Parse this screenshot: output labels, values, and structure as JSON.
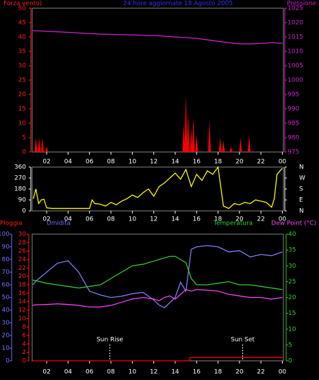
{
  "chart_data": [
    {
      "type": "line",
      "title": "24 hore aggiornate  18 Agosto 2005",
      "title_color": "#3333ff",
      "xlim": [
        0.65,
        24.1
      ],
      "xticks": [
        {
          "value": 2,
          "label": "02"
        },
        {
          "value": 4,
          "label": "04"
        },
        {
          "value": 6,
          "label": "06"
        },
        {
          "value": 8,
          "label": "08"
        },
        10,
        12,
        14,
        16,
        18,
        20,
        22,
        {
          "value": 24,
          "label": "00"
        }
      ],
      "axes": [
        {
          "label": "Forza vento)",
          "color": "#ff2020",
          "lim": [
            0,
            50
          ],
          "ticks": [
            0,
            5,
            10,
            15,
            20,
            25,
            30,
            35,
            40,
            45,
            50
          ]
        },
        {
          "label": "Pressione",
          "color": "#d020d0",
          "lim": [
            975,
            1025
          ],
          "ticks": [
            975,
            980,
            985,
            990,
            995,
            1000,
            1005,
            1010,
            1015,
            1020,
            1025
          ]
        }
      ],
      "series": [
        {
          "axis": 0,
          "style": "spikes",
          "color": "#ff0000",
          "x": [
            1.0,
            1.3,
            1.6,
            2.0,
            14.8,
            15.0,
            15.2,
            15.5,
            15.7,
            16.0,
            17.2,
            18.2,
            18.5,
            19.2,
            20.1,
            20.9
          ],
          "values": [
            5,
            5,
            5,
            2,
            10,
            20,
            14,
            8,
            12,
            6,
            11,
            5,
            4,
            2,
            5,
            6
          ]
        },
        {
          "axis": 1,
          "style": "line",
          "color": "#d020d0",
          "x": [
            0.7,
            2,
            3,
            4,
            5,
            6,
            7,
            8,
            9,
            10,
            11,
            12,
            13,
            14,
            15,
            16,
            17,
            18,
            19,
            20,
            21,
            22,
            23,
            24
          ],
          "values": [
            1017.2,
            1017,
            1016.8,
            1016.6,
            1016.4,
            1016.2,
            1016,
            1015.9,
            1015.8,
            1015.7,
            1015.6,
            1015.5,
            1015.3,
            1015,
            1014.8,
            1014.5,
            1014,
            1013.5,
            1013,
            1012.6,
            1012.6,
            1012.8,
            1013,
            1012.8
          ]
        }
      ]
    },
    {
      "type": "line",
      "xlim": [
        0.65,
        24.1
      ],
      "xticks": [
        {
          "value": 2,
          "label": "02"
        },
        {
          "value": 4,
          "label": "04"
        },
        {
          "value": 6,
          "label": "06"
        },
        {
          "value": 8,
          "label": "08"
        },
        10,
        12,
        14,
        16,
        18,
        20,
        22,
        {
          "value": 24,
          "label": "00"
        }
      ],
      "axes": [
        {
          "color": "#ffffff",
          "lim": [
            0,
            360
          ],
          "ticks": [
            0,
            90,
            180,
            270,
            360
          ]
        },
        {
          "color": "#ffffff",
          "lim": [
            0,
            360
          ],
          "ticks": [
            {
              "value": 0,
              "label": "N"
            },
            {
              "value": 90,
              "label": "E"
            },
            {
              "value": 180,
              "label": "S"
            },
            {
              "value": 270,
              "label": "W"
            },
            {
              "value": 360,
              "label": "N"
            }
          ]
        }
      ],
      "series": [
        {
          "axis": 0,
          "style": "line",
          "color": "#ffff00",
          "x": [
            0.75,
            1,
            1.25,
            1.5,
            1.75,
            2,
            2.5,
            3,
            3.5,
            4,
            4.5,
            5,
            5.5,
            6,
            6.25,
            6.5,
            7,
            7.5,
            8,
            8.5,
            9,
            9.5,
            10,
            10.5,
            11,
            11.5,
            12,
            12.5,
            13,
            13.5,
            14,
            14.5,
            15,
            15.5,
            16,
            16.5,
            17,
            17.5,
            18,
            18.5,
            19,
            19.5,
            20,
            20.5,
            21,
            21.5,
            22,
            22.5,
            23,
            23.25,
            23.5,
            24
          ],
          "values": [
            100,
            180,
            60,
            90,
            95,
            25,
            20,
            20,
            20,
            20,
            20,
            20,
            20,
            20,
            90,
            60,
            55,
            40,
            70,
            50,
            80,
            100,
            130,
            110,
            150,
            180,
            120,
            200,
            230,
            270,
            310,
            260,
            340,
            200,
            300,
            250,
            330,
            300,
            360,
            40,
            20,
            60,
            50,
            70,
            60,
            90,
            80,
            70,
            30,
            100,
            300,
            350
          ]
        }
      ]
    },
    {
      "type": "line",
      "xlim": [
        0.65,
        24.1
      ],
      "xticks": [
        {
          "value": 2,
          "label": "02"
        },
        {
          "value": 4,
          "label": "04"
        },
        {
          "value": 6,
          "label": "06"
        },
        {
          "value": 8,
          "label": "08"
        },
        10,
        12,
        14,
        16,
        18,
        20,
        22,
        {
          "value": 24,
          "label": "00"
        }
      ],
      "axes": [
        {
          "label": "Pioggia",
          "color": "#ff2020",
          "lim": [
            0,
            30
          ],
          "ticks": [
            0,
            2,
            4,
            6,
            8,
            10,
            12,
            14,
            16,
            18,
            20,
            22,
            24,
            26,
            28,
            30
          ]
        },
        {
          "label": "Umidita",
          "color": "#7070ff",
          "lim": [
            0,
            100
          ],
          "ticks": [
            0,
            10,
            20,
            30,
            40,
            50,
            60,
            70,
            80,
            90,
            100
          ]
        },
        {
          "label": "Temperatura",
          "color": "#30d030",
          "lim": [
            0,
            40
          ],
          "ticks": [
            0,
            5,
            10,
            15,
            20,
            25,
            30,
            35,
            40
          ]
        }
      ],
      "series": [
        {
          "axis": 1,
          "style": "line",
          "color": "#8080ff",
          "x": [
            0.7,
            1,
            2,
            3,
            4,
            5,
            6,
            7,
            8,
            9,
            10,
            11,
            12,
            12.5,
            13,
            13.5,
            14,
            14.5,
            15,
            15.5,
            16,
            17,
            18,
            19,
            20,
            21,
            22,
            23,
            24
          ],
          "values": [
            60,
            63,
            70,
            77,
            79,
            70,
            55,
            52,
            50,
            51,
            53,
            54,
            48,
            44,
            42,
            46,
            50,
            62,
            55,
            88,
            90,
            91,
            90,
            86,
            87,
            82,
            84,
            83,
            86
          ]
        },
        {
          "axis": 2,
          "style": "line",
          "color": "#30d030",
          "x": [
            0.7,
            1,
            2,
            3,
            4,
            5,
            6,
            7,
            8,
            9,
            10,
            11,
            12,
            12.5,
            13,
            13.5,
            14,
            14.5,
            15,
            15.5,
            16,
            17,
            18,
            19,
            20,
            21,
            22,
            23,
            24
          ],
          "values": [
            25.5,
            25.3,
            24.5,
            24,
            23.5,
            23,
            23.5,
            24,
            26,
            28,
            30,
            30.5,
            31.5,
            32,
            32.5,
            33,
            33,
            32,
            31,
            26,
            24,
            24,
            24.5,
            25,
            24,
            24,
            23.5,
            23,
            22.5
          ]
        },
        {
          "name": "Dew Point (°C)",
          "axis": 2,
          "style": "line",
          "color": "#ff40ff",
          "x": [
            0.7,
            1,
            2,
            3,
            4,
            5,
            6,
            7,
            8,
            9,
            10,
            11,
            12,
            12.5,
            13,
            13.5,
            14,
            14.5,
            15,
            15.5,
            16,
            17,
            18,
            19,
            20,
            21,
            22,
            23,
            24
          ],
          "values": [
            17.5,
            17.7,
            17.8,
            18,
            17.8,
            17.5,
            17,
            17,
            17.5,
            18.5,
            19.5,
            20,
            19.5,
            19,
            20,
            20.5,
            19.5,
            21,
            22.5,
            22,
            22.5,
            22.3,
            22,
            21,
            20.5,
            20,
            20,
            19.5,
            20
          ]
        },
        {
          "axis": 0,
          "style": "line",
          "color": "#ff0000",
          "x": [
            0.7,
            15.3,
            15.4,
            24.1
          ],
          "values": [
            0,
            0,
            0.8,
            0.8
          ]
        }
      ],
      "annotations": [
        {
          "text": "Sun Rise",
          "x": 7.9
        },
        {
          "text": "Sun Set",
          "x": 20.3
        }
      ]
    }
  ]
}
